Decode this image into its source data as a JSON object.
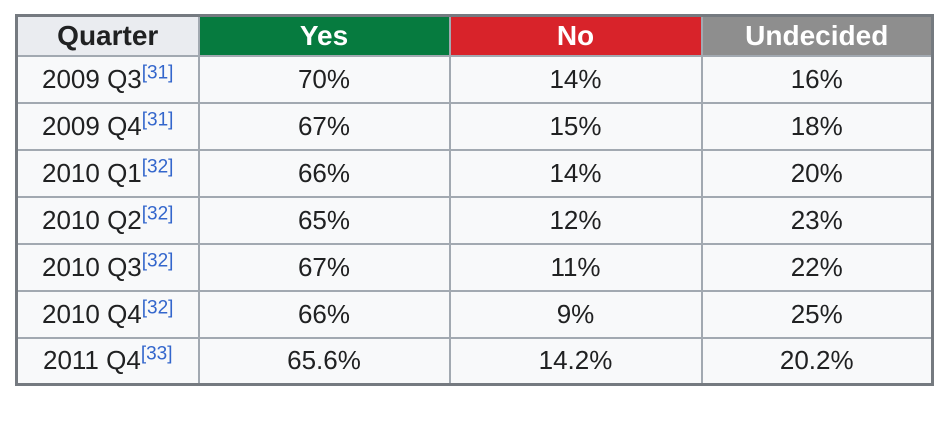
{
  "chart_data": {
    "type": "table",
    "columns": [
      {
        "label": "Quarter"
      },
      {
        "label": "Yes"
      },
      {
        "label": "No"
      },
      {
        "label": "Undecided"
      }
    ],
    "rows": [
      {
        "quarter": "2009 Q3",
        "ref": "[31]",
        "yes": "70%",
        "no": "14%",
        "undecided": "16%"
      },
      {
        "quarter": "2009 Q4",
        "ref": "[31]",
        "yes": "67%",
        "no": "15%",
        "undecided": "18%"
      },
      {
        "quarter": "2010 Q1",
        "ref": "[32]",
        "yes": "66%",
        "no": "14%",
        "undecided": "20%"
      },
      {
        "quarter": "2010 Q2",
        "ref": "[32]",
        "yes": "65%",
        "no": "12%",
        "undecided": "23%"
      },
      {
        "quarter": "2010 Q3",
        "ref": "[32]",
        "yes": "67%",
        "no": "11%",
        "undecided": "22%"
      },
      {
        "quarter": "2010 Q4",
        "ref": "[32]",
        "yes": "66%",
        "no": "9%",
        "undecided": "25%"
      },
      {
        "quarter": "2011 Q4",
        "ref": "[33]",
        "yes": "65.6%",
        "no": "14.2%",
        "undecided": "20.2%"
      }
    ]
  },
  "colors": {
    "yes_header_bg": "#067b3f",
    "no_header_bg": "#d8232a",
    "undecided_header_bg": "#8e8e8e",
    "quarter_header_bg": "#eaecf0",
    "header_text_light": "#ffffff",
    "cell_bg": "#f8f9fa",
    "cell_text": "#202122",
    "inner_border": "#a2a9b1",
    "outer_border": "#757a80",
    "reference_link": "#3366cc"
  }
}
